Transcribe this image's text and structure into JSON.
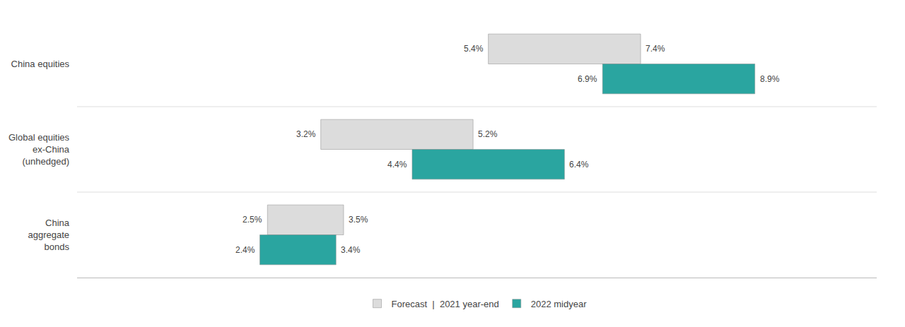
{
  "chart_data": {
    "type": "bar",
    "orientation": "horizontal",
    "categories": [
      "China equities",
      "Global equities\nex-China\n(unhedged)",
      "China\naggregate\nbonds"
    ],
    "series": [
      {
        "name": "Forecast  |  2021 year-end",
        "color": "#dcdcdc",
        "values": [
          [
            5.4,
            7.4
          ],
          [
            3.2,
            5.2
          ],
          [
            2.5,
            3.5
          ]
        ],
        "value_labels": [
          [
            "5.4%",
            "7.4%"
          ],
          [
            "3.2%",
            "5.2%"
          ],
          [
            "2.5%",
            "3.5%"
          ]
        ]
      },
      {
        "name": "2022 midyear",
        "color": "#2aa5a0",
        "values": [
          [
            6.9,
            8.9
          ],
          [
            4.4,
            6.4
          ],
          [
            2.4,
            3.4
          ]
        ],
        "value_labels": [
          [
            "6.9%",
            "8.9%"
          ],
          [
            "4.4%",
            "6.4%"
          ],
          [
            "2.4%",
            "3.4%"
          ]
        ]
      }
    ],
    "xlim": [
      0,
      10.5
    ],
    "xticks": [],
    "data_labels": true,
    "tick_labels": "y",
    "grid": false,
    "legend": "bottom"
  }
}
